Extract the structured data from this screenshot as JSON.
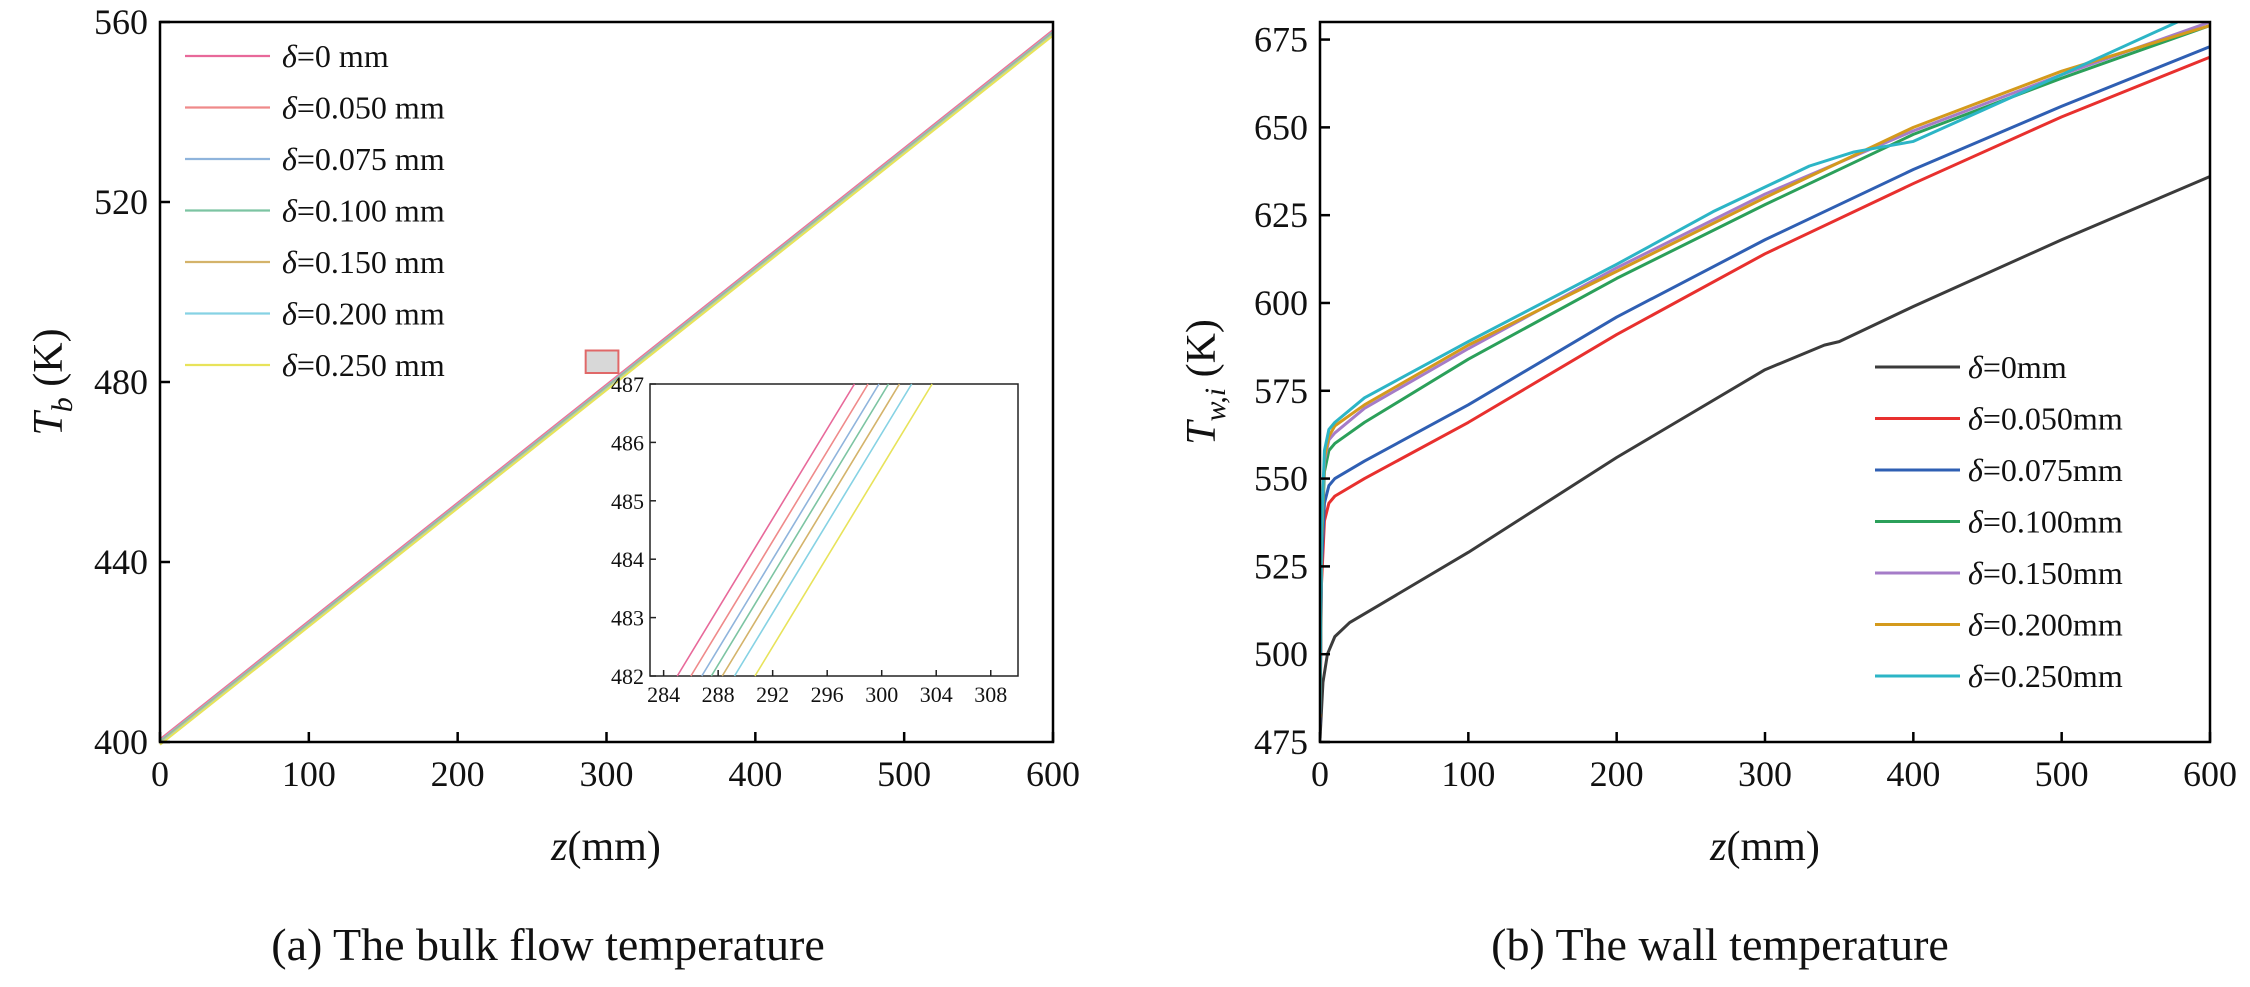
{
  "chart_data": [
    {
      "type": "line",
      "caption": "(a) The bulk flow temperature",
      "xlabel": "z(mm)",
      "ylabel": "Tb (K)",
      "xlim": [
        0,
        600
      ],
      "ylim": [
        400,
        560
      ],
      "xticks": [
        0,
        100,
        200,
        300,
        400,
        500,
        600
      ],
      "yticks": [
        400,
        440,
        480,
        520,
        560
      ],
      "legend_position": "top-left",
      "series": [
        {
          "name": "δ=0 mm",
          "color": "#e8699a",
          "x": [
            0,
            600
          ],
          "y": [
            400.6,
            558.2
          ]
        },
        {
          "name": "δ=0.050 mm",
          "color": "#ef8a8a",
          "x": [
            0,
            600
          ],
          "y": [
            400.4,
            558.0
          ]
        },
        {
          "name": "δ=0.075 mm",
          "color": "#8fb4dc",
          "x": [
            0,
            600
          ],
          "y": [
            400.2,
            557.8
          ]
        },
        {
          "name": "δ=0.100 mm",
          "color": "#7cc4a2",
          "x": [
            0,
            600
          ],
          "y": [
            400.0,
            557.6
          ]
        },
        {
          "name": "δ=0.150 mm",
          "color": "#d4b36a",
          "x": [
            0,
            600
          ],
          "y": [
            399.8,
            557.4
          ]
        },
        {
          "name": "δ=0.200 mm",
          "color": "#86d2e4",
          "x": [
            0,
            600
          ],
          "y": [
            399.6,
            557.2
          ]
        },
        {
          "name": "δ=0.250 mm",
          "color": "#e8e35a",
          "x": [
            0,
            600
          ],
          "y": [
            399.4,
            557.0
          ]
        }
      ],
      "zoom_box": {
        "xlim": [
          286,
          308
        ],
        "ylim": [
          482,
          487
        ]
      },
      "inset": {
        "xlim": [
          283,
          310
        ],
        "ylim": [
          482,
          487
        ],
        "xticks": [
          284,
          288,
          292,
          296,
          300,
          304,
          308
        ],
        "yticks": [
          482,
          483,
          484,
          485,
          486,
          487
        ],
        "series_x": [
          [
            285.0,
            298.0
          ],
          [
            286.0,
            299.0
          ],
          [
            286.8,
            299.8
          ],
          [
            287.5,
            300.5
          ],
          [
            288.3,
            301.3
          ],
          [
            289.2,
            302.2
          ],
          [
            290.7,
            303.7
          ]
        ],
        "series_y": [
          482,
          487
        ]
      }
    },
    {
      "type": "line",
      "caption": "(b) The wall temperature",
      "xlabel": "z(mm)",
      "ylabel": "Tw,i (K)",
      "xlim": [
        0,
        600
      ],
      "ylim": [
        475,
        680
      ],
      "xticks": [
        0,
        100,
        200,
        300,
        400,
        500,
        600
      ],
      "yticks": [
        475,
        500,
        525,
        550,
        575,
        600,
        625,
        650,
        675
      ],
      "legend_position": "center-right",
      "series": [
        {
          "name": "δ=0mm",
          "color": "#3b3b3b",
          "x": [
            0,
            2,
            5,
            10,
            20,
            40,
            100,
            200,
            300,
            340,
            350,
            400,
            500,
            600
          ],
          "y": [
            476,
            492,
            500,
            505,
            509,
            514,
            529,
            556,
            581,
            588,
            589,
            599,
            618,
            636
          ]
        },
        {
          "name": "δ=0.050mm",
          "color": "#e8302e",
          "x": [
            0,
            1,
            3,
            6,
            10,
            30,
            100,
            200,
            300,
            400,
            500,
            600
          ],
          "y": [
            480,
            520,
            538,
            543,
            545,
            550,
            566,
            591,
            614,
            634,
            653,
            670
          ]
        },
        {
          "name": "δ=0.075mm",
          "color": "#2f5fb3",
          "x": [
            0,
            1,
            3,
            6,
            10,
            30,
            100,
            200,
            300,
            400,
            500,
            600
          ],
          "y": [
            480,
            525,
            543,
            548,
            550,
            555,
            571,
            596,
            618,
            638,
            656,
            673
          ]
        },
        {
          "name": "δ=0.100mm",
          "color": "#2ba05a",
          "x": [
            0,
            1,
            3,
            6,
            10,
            30,
            100,
            200,
            300,
            400,
            500,
            600
          ],
          "y": [
            482,
            530,
            552,
            558,
            560,
            566,
            584,
            607,
            628,
            648,
            664,
            679
          ]
        },
        {
          "name": "δ=0.150mm",
          "color": "#a57cc8",
          "x": [
            0,
            1,
            3,
            6,
            10,
            30,
            100,
            200,
            300,
            400,
            500,
            600
          ],
          "y": [
            482,
            532,
            555,
            561,
            563,
            570,
            587,
            610,
            631,
            649,
            665,
            680
          ]
        },
        {
          "name": "δ=0.200mm",
          "color": "#d49a1c",
          "x": [
            0,
            1,
            3,
            6,
            10,
            30,
            100,
            200,
            300,
            400,
            500,
            600
          ],
          "y": [
            482,
            533,
            556,
            562,
            565,
            571,
            588,
            609,
            630,
            650,
            666,
            679
          ]
        },
        {
          "name": "δ=0.250mm",
          "color": "#2cb5c6",
          "x": [
            0,
            1,
            3,
            6,
            10,
            30,
            100,
            200,
            265,
            330,
            360,
            400,
            500,
            578
          ],
          "y": [
            483,
            535,
            558,
            564,
            566,
            573,
            589,
            611,
            626,
            639,
            643,
            646,
            665,
            680
          ]
        }
      ]
    }
  ]
}
